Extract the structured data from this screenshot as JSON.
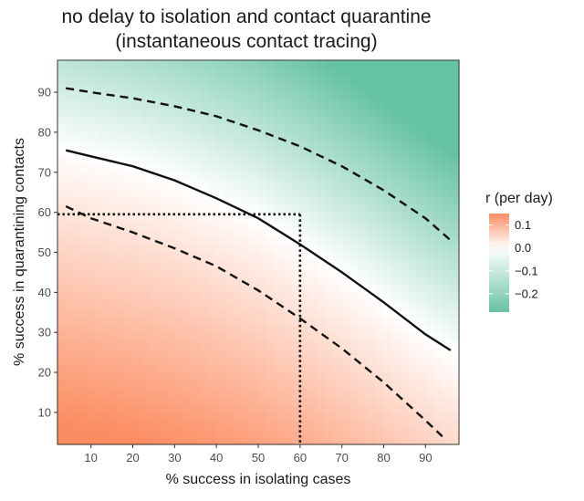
{
  "chart_data": {
    "type": "heatmap",
    "title": "no delay to isolation and contact quarantine",
    "subtitle": "(instantaneous contact tracing)",
    "xlabel": "% success in isolating cases",
    "ylabel": "% success in quarantining contacts",
    "xlim": [
      2,
      98
    ],
    "ylim": [
      2,
      98
    ],
    "x_ticks": [
      10,
      20,
      30,
      40,
      50,
      60,
      70,
      80,
      90
    ],
    "y_ticks": [
      10,
      20,
      30,
      40,
      50,
      60,
      70,
      80,
      90
    ],
    "fill_variable": "r (per day)",
    "color_scale": {
      "low_color": "#66c2a5",
      "mid_color": "#ffffff",
      "high_color": "#fc8d62",
      "limits": [
        -0.28,
        0.15
      ],
      "breaks": [
        0.1,
        0.0,
        -0.1,
        -0.2
      ],
      "break_labels": [
        "0.1",
        "0.0",
        "−0.1",
        "−0.2"
      ]
    },
    "contours": [
      {
        "style": "solid",
        "points": [
          [
            4,
            75.5
          ],
          [
            10,
            74
          ],
          [
            20,
            71.5
          ],
          [
            30,
            68
          ],
          [
            40,
            63.5
          ],
          [
            50,
            58.5
          ],
          [
            60,
            52
          ],
          [
            70,
            45
          ],
          [
            80,
            37.5
          ],
          [
            90,
            29.5
          ],
          [
            96,
            25.5
          ]
        ]
      },
      {
        "style": "dashed",
        "points": [
          [
            4,
            91
          ],
          [
            10,
            90
          ],
          [
            20,
            88.5
          ],
          [
            30,
            86.5
          ],
          [
            40,
            84
          ],
          [
            50,
            80.5
          ],
          [
            60,
            76.5
          ],
          [
            70,
            71.5
          ],
          [
            80,
            65.5
          ],
          [
            90,
            58.5
          ],
          [
            96,
            53
          ]
        ]
      },
      {
        "style": "dashed",
        "points": [
          [
            4,
            61.5
          ],
          [
            10,
            58.5
          ],
          [
            20,
            55
          ],
          [
            30,
            51
          ],
          [
            40,
            46.5
          ],
          [
            50,
            40.5
          ],
          [
            60,
            33.5
          ],
          [
            70,
            26
          ],
          [
            80,
            17.5
          ],
          [
            90,
            8
          ],
          [
            94,
            4
          ]
        ]
      }
    ],
    "reference_lines": {
      "style": "dotted",
      "x": 60,
      "y": 59.5
    },
    "grid": false,
    "legend_position": "right"
  }
}
